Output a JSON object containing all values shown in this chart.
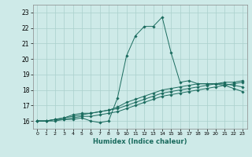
{
  "title": "",
  "xlabel": "Humidex (Indice chaleur)",
  "ylabel": "",
  "background_color": "#ceeae8",
  "grid_color": "#aad0cc",
  "line_color": "#1a6b5e",
  "xlim": [
    -0.5,
    23.5
  ],
  "ylim": [
    15.5,
    23.5
  ],
  "yticks": [
    16,
    17,
    18,
    19,
    20,
    21,
    22,
    23
  ],
  "xticks": [
    0,
    1,
    2,
    3,
    4,
    5,
    6,
    7,
    8,
    9,
    10,
    11,
    12,
    13,
    14,
    15,
    16,
    17,
    18,
    19,
    20,
    21,
    22,
    23
  ],
  "series": [
    [
      16.0,
      16.0,
      16.1,
      16.1,
      16.1,
      16.2,
      16.0,
      15.9,
      16.0,
      17.5,
      20.2,
      21.5,
      22.1,
      22.1,
      22.7,
      20.4,
      18.5,
      18.6,
      18.4,
      18.4,
      18.4,
      18.3,
      18.1,
      17.9
    ],
    [
      16.0,
      16.0,
      16.0,
      16.1,
      16.2,
      16.3,
      16.3,
      16.4,
      16.5,
      16.6,
      16.8,
      17.0,
      17.2,
      17.4,
      17.6,
      17.7,
      17.8,
      17.9,
      18.0,
      18.1,
      18.2,
      18.3,
      18.4,
      18.5
    ],
    [
      16.0,
      16.0,
      16.1,
      16.2,
      16.3,
      16.4,
      16.5,
      16.6,
      16.7,
      16.8,
      17.0,
      17.2,
      17.4,
      17.6,
      17.8,
      17.9,
      18.0,
      18.1,
      18.2,
      18.3,
      18.4,
      18.5,
      18.5,
      18.6
    ],
    [
      16.0,
      16.0,
      16.1,
      16.2,
      16.4,
      16.5,
      16.5,
      16.6,
      16.7,
      16.9,
      17.2,
      17.4,
      17.6,
      17.8,
      18.0,
      18.1,
      18.2,
      18.3,
      18.4,
      18.4,
      18.4,
      18.4,
      18.3,
      18.2
    ]
  ],
  "figsize": [
    3.2,
    2.0
  ],
  "dpi": 100
}
